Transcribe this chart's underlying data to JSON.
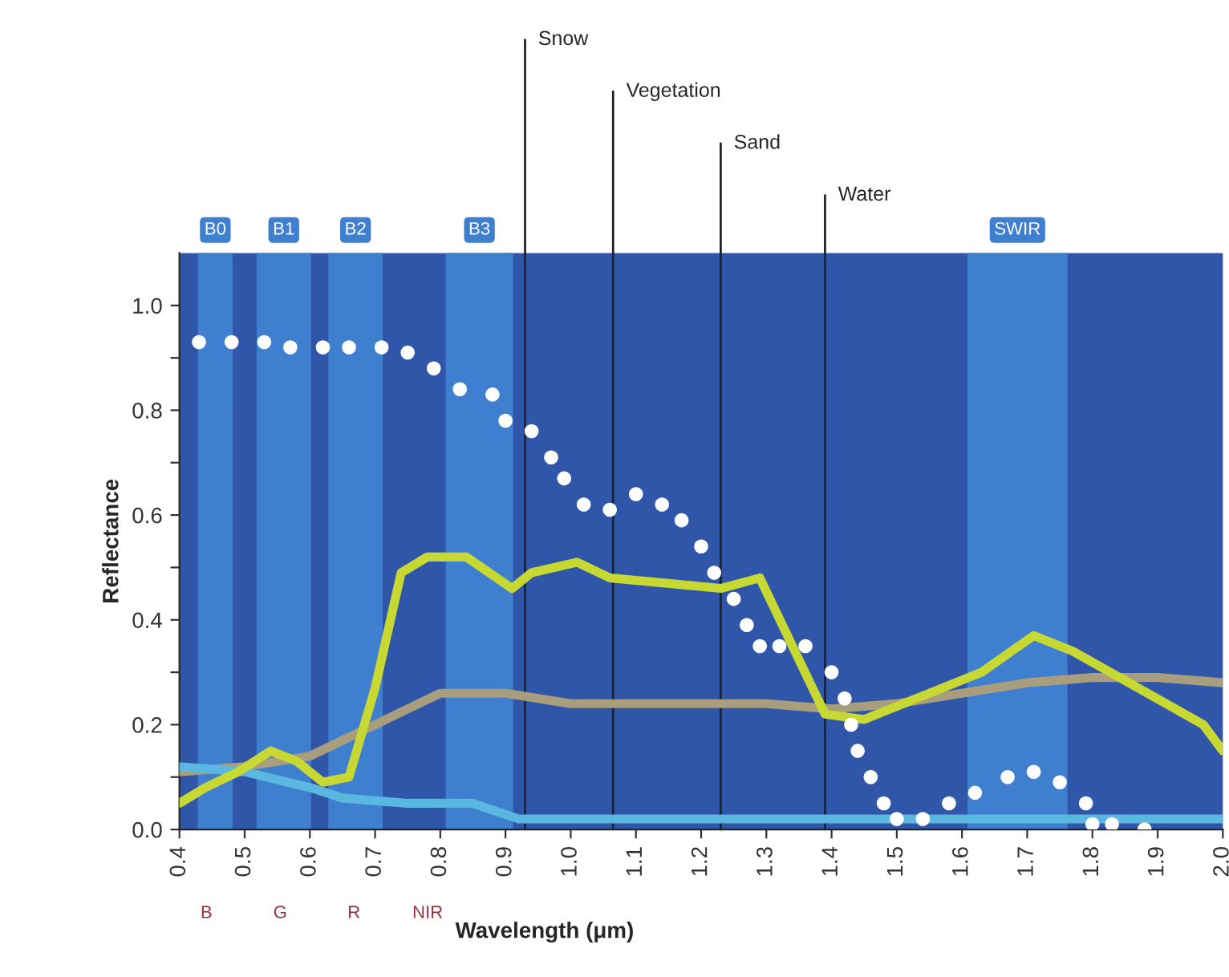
{
  "chart_data": {
    "type": "line",
    "xlabel": "Wavelength (μm)",
    "ylabel": "Reflectance",
    "xlim": [
      0.4,
      2.0
    ],
    "ylim": [
      0,
      1.1
    ],
    "xticks": [
      0.4,
      0.5,
      0.6,
      0.7,
      0.8,
      0.9,
      {
        "value": 1,
        "label": "1.0"
      },
      1.1,
      1.2,
      1.3,
      1.4,
      1.5,
      1.6,
      1.7,
      1.8,
      1.9,
      {
        "value": 2,
        "label": "2.0"
      }
    ],
    "yticks": [
      {
        "value": 0,
        "label": "0.0"
      },
      {
        "value": 0.1,
        "label": null
      },
      {
        "value": 0.2,
        "label": "0.2"
      },
      {
        "value": 0.3,
        "label": null
      },
      {
        "value": 0.4,
        "label": "0.4"
      },
      {
        "value": 0.5,
        "label": null
      },
      {
        "value": 0.6,
        "label": "0.6"
      },
      {
        "value": 0.7,
        "label": null
      },
      {
        "value": 0.8,
        "label": "0.8"
      },
      {
        "value": 0.9,
        "label": null
      },
      {
        "value": 1.0,
        "label": "1.0"
      }
    ],
    "grid": false,
    "legend": false,
    "series": [
      {
        "color": "#a89e7e",
        "x": [
          0.4,
          0.5,
          0.6,
          0.7,
          0.8,
          0.9,
          1.0,
          1.1,
          1.2,
          1.3,
          1.4,
          1.5,
          1.6,
          1.7,
          1.8,
          1.9,
          2.0
        ],
        "values": [
          0.11,
          0.12,
          0.14,
          0.2,
          0.26,
          0.26,
          0.24,
          0.24,
          0.24,
          0.24,
          0.23,
          0.24,
          0.26,
          0.28,
          0.29,
          0.29,
          0.28
        ]
      },
      {
        "color": "#5ab8e0",
        "x": [
          0.4,
          0.5,
          0.6,
          0.65,
          0.75,
          0.85,
          0.92,
          1.0,
          1.2,
          1.4,
          1.6,
          1.8,
          2.0
        ],
        "values": [
          0.12,
          0.11,
          0.08,
          0.06,
          0.05,
          0.05,
          0.02,
          0.02,
          0.02,
          0.02,
          0.02,
          0.02,
          0.02
        ]
      },
      {
        "color": "#c8d832",
        "x": [
          0.4,
          0.44,
          0.49,
          0.54,
          0.58,
          0.62,
          0.66,
          0.7,
          0.74,
          0.78,
          0.84,
          0.91,
          0.94,
          1.01,
          1.06,
          1.23,
          1.29,
          1.39,
          1.45,
          1.63,
          1.71,
          1.77,
          1.97,
          2.0
        ],
        "values": [
          0.05,
          0.08,
          0.11,
          0.15,
          0.13,
          0.09,
          0.1,
          0.27,
          0.49,
          0.52,
          0.52,
          0.46,
          0.49,
          0.51,
          0.48,
          0.46,
          0.48,
          0.22,
          0.21,
          0.3,
          0.37,
          0.34,
          0.2,
          0.15
        ]
      },
      {
        "type": "scatter",
        "color": "#ffffff",
        "marker": "circle",
        "x": [
          0.43,
          0.48,
          0.53,
          0.57,
          0.62,
          0.66,
          0.71,
          0.75,
          0.79,
          0.83,
          0.88,
          0.9,
          0.94,
          0.97,
          0.99,
          1.02,
          1.06,
          1.1,
          1.14,
          1.17,
          1.2,
          1.22,
          1.25,
          1.27,
          1.29,
          1.32,
          1.36,
          1.4,
          1.42,
          1.43,
          1.44,
          1.46,
          1.48,
          1.5,
          1.54,
          1.58,
          1.62,
          1.67,
          1.71,
          1.75,
          1.79,
          1.8,
          1.83,
          1.88
        ],
        "values": [
          0.93,
          0.93,
          0.93,
          0.92,
          0.92,
          0.92,
          0.92,
          0.91,
          0.88,
          0.84,
          0.83,
          0.78,
          0.76,
          0.71,
          0.67,
          0.62,
          0.61,
          0.64,
          0.62,
          0.59,
          0.54,
          0.49,
          0.44,
          0.39,
          0.35,
          0.35,
          0.35,
          0.3,
          0.25,
          0.2,
          0.15,
          0.1,
          0.05,
          0.02,
          0.02,
          0.05,
          0.07,
          0.1,
          0.11,
          0.09,
          0.05,
          0.01,
          0.01,
          0.0
        ]
      }
    ],
    "bands": [
      {
        "axis": "x",
        "from": 0.43,
        "to": 0.48,
        "label": "B0",
        "color": "#3f7fcf"
      },
      {
        "axis": "x",
        "from": 0.52,
        "to": 0.6,
        "label": "B1",
        "color": "#3f7fcf"
      },
      {
        "axis": "x",
        "from": 0.63,
        "to": 0.71,
        "label": "B2",
        "color": "#3f7fcf"
      },
      {
        "axis": "x",
        "from": 0.81,
        "to": 0.91,
        "label": "B3",
        "color": "#3f7fcf"
      },
      {
        "axis": "x",
        "from": 1.61,
        "to": 1.76,
        "label": "SWIR",
        "color": "#3f7fcf"
      }
    ],
    "ref_lines": [
      {
        "axis": "x",
        "value": 0.93,
        "label": "Snow",
        "color": "#222222"
      },
      {
        "axis": "x",
        "value": 1.065,
        "label": "Vegetation",
        "color": "#222222"
      },
      {
        "axis": "x",
        "value": 1.23,
        "label": "Sand",
        "color": "#222222"
      },
      {
        "axis": "x",
        "value": 1.39,
        "label": "Water",
        "color": "#222222"
      }
    ],
    "annotations": [
      "B",
      "G",
      "R",
      "NIR"
    ]
  }
}
